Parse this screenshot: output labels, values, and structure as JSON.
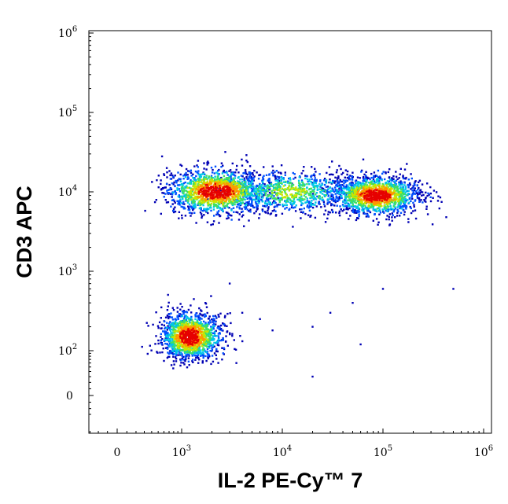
{
  "chart_data": {
    "type": "scatter",
    "style": "flow-cytometry density dot plot (biexponential axes)",
    "xlabel": "IL-2 PE-Cy™ 7",
    "ylabel": "CD3 APC",
    "x_scale": "biexponential",
    "y_scale": "biexponential",
    "xlim": [
      -300,
      1000000
    ],
    "ylim": [
      -30,
      1000000
    ],
    "x_ticks": [
      {
        "base": "0",
        "exp": "",
        "value": 0
      },
      {
        "base": "10",
        "exp": "3",
        "value": 1000
      },
      {
        "base": "10",
        "exp": "4",
        "value": 10000
      },
      {
        "base": "10",
        "exp": "5",
        "value": 100000
      },
      {
        "base": "10",
        "exp": "6",
        "value": 1000000
      }
    ],
    "y_ticks": [
      {
        "base": "0",
        "exp": "",
        "value": 0
      },
      {
        "base": "10",
        "exp": "2",
        "value": 100
      },
      {
        "base": "10",
        "exp": "3",
        "value": 1000
      },
      {
        "base": "10",
        "exp": "4",
        "value": 10000
      },
      {
        "base": "10",
        "exp": "5",
        "value": 100000
      },
      {
        "base": "10",
        "exp": "6",
        "value": 1000000
      }
    ],
    "density_colormap": [
      "#0000b4",
      "#0050ff",
      "#00c8e6",
      "#40e060",
      "#c8e600",
      "#ff9600",
      "#e60000"
    ],
    "grid": false,
    "populations": [
      {
        "center_x": 1200,
        "center_y": 150,
        "spread_decades_x": 0.16,
        "spread_decades_y": 0.15,
        "relative_count": 1.0
      },
      {
        "center_x": 2200,
        "center_y": 10000,
        "spread_decades_x": 0.25,
        "spread_decades_y": 0.14,
        "relative_count": 1.0
      },
      {
        "center_x": 12000,
        "center_y": 10000,
        "spread_decades_x": 0.35,
        "spread_decades_y": 0.13,
        "relative_count": 0.6
      },
      {
        "center_x": 85000,
        "center_y": 9000,
        "spread_decades_x": 0.22,
        "spread_decades_y": 0.12,
        "relative_count": 1.0
      }
    ],
    "scattered_events": [
      {
        "x": 500000,
        "y": 600
      },
      {
        "x": 100000,
        "y": 600
      },
      {
        "x": 50000,
        "y": 400
      },
      {
        "x": 30000,
        "y": 300
      },
      {
        "x": 20000,
        "y": 200
      },
      {
        "x": 8000,
        "y": 180
      },
      {
        "x": 6000,
        "y": 250
      },
      {
        "x": 4000,
        "y": 300
      },
      {
        "x": 3000,
        "y": 700
      },
      {
        "x": 3500,
        "y": 60
      },
      {
        "x": 20000,
        "y": 30
      },
      {
        "x": 60000,
        "y": 120
      }
    ]
  }
}
